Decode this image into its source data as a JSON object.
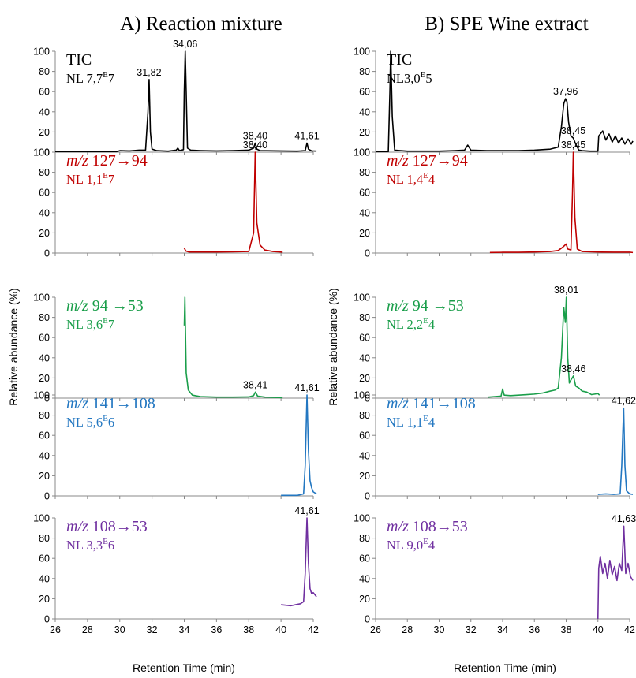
{
  "chart_data": [
    {
      "panel": "A",
      "title": "A) Reaction mixture",
      "type": "line",
      "xlabel": "Retention Time (min)",
      "ylabel": "Relative abundance (%)",
      "xlim": [
        26,
        42
      ],
      "xticks": [
        "26",
        "28",
        "30",
        "32",
        "34",
        "36",
        "38",
        "40",
        "42"
      ],
      "yticks": [
        "0",
        "20",
        "40",
        "60",
        "80",
        "100"
      ],
      "traces": [
        {
          "label_a": "TIC",
          "label_b": "NL 7,7",
          "label_sup": "E",
          "label_c": "7",
          "color": "#000000",
          "ylim": [
            0,
            100
          ],
          "peaks": [
            {
              "x": 31.82,
              "label": "31,82",
              "h": 72
            },
            {
              "x": 34.06,
              "label": "34,06",
              "h": 100
            },
            {
              "x": 38.4,
              "label": "38,40",
              "h": 9
            },
            {
              "x": 41.61,
              "label": "41,61",
              "h": 9
            }
          ],
          "x": [
            26.0,
            29.8,
            30.0,
            30.6,
            31.2,
            31.6,
            31.75,
            31.82,
            31.9,
            32.0,
            32.3,
            33.0,
            33.5,
            33.6,
            33.7,
            33.95,
            34.0,
            34.06,
            34.12,
            34.2,
            34.4,
            35.0,
            36.0,
            37.0,
            38.0,
            38.3,
            38.4,
            38.5,
            38.7,
            40.0,
            41.0,
            41.5,
            41.61,
            41.7,
            41.9,
            42.2
          ],
          "y": [
            0.5,
            0.5,
            1.5,
            1.2,
            2.0,
            2.0,
            40,
            72,
            20,
            3,
            1.5,
            1.0,
            2.0,
            4.0,
            1.5,
            2.5,
            60,
            100,
            60,
            4,
            2,
            1.5,
            1.2,
            1.5,
            2,
            4,
            9,
            3,
            1.5,
            1.2,
            1.0,
            1.5,
            9,
            3,
            1.2,
            1.0
          ]
        },
        {
          "label_a": "m/z",
          "label_b": " 127→94",
          "label_line2": "NL 1,1",
          "label_sup": "E",
          "label_c": "7",
          "color": "#c00000",
          "ylim": [
            0,
            100
          ],
          "peaks": [
            {
              "x": 38.4,
              "label": "38,40",
              "h": 100
            }
          ],
          "x": [
            34.0,
            34.1,
            34.3,
            35.0,
            36.0,
            37.0,
            38.0,
            38.3,
            38.4,
            38.5,
            38.7,
            39.0,
            39.5,
            40.0,
            40.1
          ],
          "y": [
            5,
            2,
            1,
            1,
            1,
            1.2,
            1.5,
            20,
            100,
            30,
            8,
            3,
            1.5,
            1,
            0.5
          ]
        },
        {
          "label_a": "m/z",
          "label_b": " 94 →53",
          "label_line2": "NL 3,6",
          "label_sup": "E",
          "label_c": "7",
          "color": "#1a9e4a",
          "ylim": [
            0,
            100
          ],
          "peaks": [
            {
              "x": 38.41,
              "label": "38,41",
              "h": 6
            }
          ],
          "x": [
            34.0,
            34.04,
            34.06,
            34.12,
            34.25,
            34.5,
            35.0,
            36.0,
            37.0,
            38.0,
            38.3,
            38.41,
            38.55,
            39.0,
            40.0,
            40.1
          ],
          "y": [
            72,
            100,
            80,
            25,
            8,
            3,
            1.5,
            1.0,
            1.0,
            1.2,
            2.5,
            6,
            2,
            1,
            0.5,
            0.5
          ]
        },
        {
          "label_a": "m/z",
          "label_b": " 141→108",
          "label_line2": "NL 5,6",
          "label_sup": "E",
          "label_c": "6",
          "color": "#2377c1",
          "ylim": [
            0,
            100
          ],
          "peaks": [
            {
              "x": 41.61,
              "label": "41,61",
              "h": 100
            }
          ],
          "x": [
            40.0,
            41.0,
            41.4,
            41.5,
            41.61,
            41.7,
            41.8,
            41.9,
            42.0,
            42.2
          ],
          "y": [
            0.5,
            0.5,
            2,
            30,
            100,
            45,
            15,
            8,
            4,
            2
          ]
        },
        {
          "label_a": "m/z",
          "label_b": " 108→53",
          "label_line2": "NL 3,3",
          "label_sup": "E",
          "label_c": "6",
          "color": "#7030a0",
          "ylim": [
            0,
            100
          ],
          "peaks": [
            {
              "x": 41.61,
              "label": "41,61",
              "h": 100
            }
          ],
          "x": [
            40.0,
            40.3,
            40.6,
            40.9,
            41.2,
            41.4,
            41.5,
            41.61,
            41.7,
            41.8,
            41.9,
            42.0,
            42.2
          ],
          "y": [
            14,
            13.5,
            13,
            14,
            15,
            17,
            45,
            100,
            55,
            30,
            25,
            26,
            22
          ]
        }
      ]
    },
    {
      "panel": "B",
      "title": "B) SPE Wine extract",
      "type": "line",
      "xlabel": "Retention Time (min)",
      "ylabel": "Relative abundance (%)",
      "xlim": [
        26,
        42
      ],
      "xticks": [
        "26",
        "28",
        "30",
        "32",
        "34",
        "36",
        "38",
        "40",
        "42"
      ],
      "yticks": [
        "0",
        "20",
        "40",
        "60",
        "80",
        "100"
      ],
      "traces": [
        {
          "label_a": "TIC",
          "label_b": "NL3,0",
          "label_sup": "E",
          "label_c": "5",
          "color": "#000000",
          "ylim": [
            0,
            100
          ],
          "peaks": [
            {
              "x": 37.96,
              "label": "37,96",
              "h": 53
            },
            {
              "x": 38.45,
              "label": "38,45",
              "h": 14
            }
          ],
          "x": [
            26.0,
            26.8,
            26.9,
            26.95,
            27.05,
            27.2,
            28.0,
            29.0,
            30.0,
            31.0,
            31.6,
            31.8,
            32.0,
            33.0,
            34.0,
            35.0,
            36.0,
            37.0,
            37.5,
            37.7,
            37.85,
            37.96,
            38.05,
            38.15,
            38.3,
            38.45,
            38.6,
            38.8,
            39.0,
            39.5,
            40.0,
            40.05,
            40.3,
            40.5,
            40.7,
            40.9,
            41.1,
            41.3,
            41.5,
            41.7,
            41.9,
            42.1,
            42.2
          ],
          "y": [
            0.5,
            0.5,
            60,
            100,
            35,
            2,
            1,
            1,
            1,
            1.5,
            2,
            7,
            2,
            1.5,
            1.5,
            1.5,
            2,
            3,
            5,
            25,
            48,
            53,
            50,
            30,
            16,
            14,
            8,
            2,
            1.5,
            1,
            1,
            16,
            21,
            12,
            18,
            10,
            16,
            9,
            14,
            8,
            13,
            8,
            11
          ]
        },
        {
          "label_a": "m/z",
          "label_b": " 127→94",
          "label_line2": "NL 1,4",
          "label_sup": "E",
          "label_c": "4",
          "color": "#c00000",
          "ylim": [
            0,
            100
          ],
          "peaks": [
            {
              "x": 38.45,
              "label": "38,45",
              "h": 100
            }
          ],
          "x": [
            33.2,
            34.0,
            35.0,
            36.0,
            37.0,
            37.5,
            37.8,
            38.0,
            38.1,
            38.3,
            38.4,
            38.45,
            38.55,
            38.7,
            39.0,
            40.0,
            41.0,
            41.5,
            42.0,
            42.2
          ],
          "y": [
            0.5,
            0.7,
            0.7,
            1.0,
            1.5,
            2.5,
            6,
            9,
            4,
            3,
            60,
            100,
            35,
            4,
            1.5,
            1,
            0.8,
            0.8,
            0.8,
            0.5
          ]
        },
        {
          "label_a": "m/z",
          "label_b": " 94 →53",
          "label_line2": "NL 2,2",
          "label_sup": "E",
          "label_c": "4",
          "color": "#1a9e4a",
          "ylim": [
            0,
            100
          ],
          "peaks": [
            {
              "x": 38.01,
              "label": "38,01",
              "h": 100
            },
            {
              "x": 38.46,
              "label": "38,46",
              "h": 22
            }
          ],
          "x": [
            33.1,
            33.5,
            33.9,
            34.0,
            34.1,
            34.5,
            35.0,
            35.5,
            36.0,
            36.5,
            37.0,
            37.3,
            37.5,
            37.7,
            37.85,
            37.95,
            38.01,
            38.1,
            38.2,
            38.3,
            38.46,
            38.6,
            38.8,
            39.0,
            39.3,
            39.6,
            40.0,
            40.1
          ],
          "y": [
            1,
            1.5,
            2,
            9,
            3,
            2.5,
            3,
            3.5,
            4,
            5,
            7,
            8,
            10,
            40,
            90,
            75,
            100,
            40,
            15,
            18,
            22,
            12,
            10,
            7,
            6,
            3.5,
            4.5,
            3
          ]
        },
        {
          "label_a": "m/z",
          "label_b": " 141→108",
          "label_line2": "NL 1,1",
          "label_sup": "E",
          "label_c": "4",
          "color": "#2377c1",
          "ylim": [
            0,
            100
          ],
          "peaks": [
            {
              "x": 41.62,
              "label": "41,62",
              "h": 87
            }
          ],
          "x": [
            40.0,
            40.5,
            41.0,
            41.4,
            41.5,
            41.62,
            41.7,
            41.8,
            42.0,
            42.2
          ],
          "y": [
            1.5,
            2,
            1.5,
            2,
            30,
            87,
            30,
            5,
            2,
            1.5
          ]
        },
        {
          "label_a": "m/z",
          "label_b": " 108→53",
          "label_line2": "NL 9,0",
          "label_sup": "E",
          "label_c": "4",
          "color": "#7030a0",
          "ylim": [
            0,
            100
          ],
          "peaks": [
            {
              "x": 41.63,
              "label": "41,63",
              "h": 92
            }
          ],
          "x": [
            40.0,
            40.05,
            40.15,
            40.3,
            40.45,
            40.6,
            40.75,
            40.9,
            41.05,
            41.2,
            41.35,
            41.5,
            41.63,
            41.75,
            41.9,
            42.05,
            42.2
          ],
          "y": [
            0,
            50,
            62,
            45,
            55,
            40,
            58,
            44,
            52,
            38,
            55,
            48,
            92,
            45,
            55,
            42,
            38
          ]
        }
      ]
    }
  ]
}
